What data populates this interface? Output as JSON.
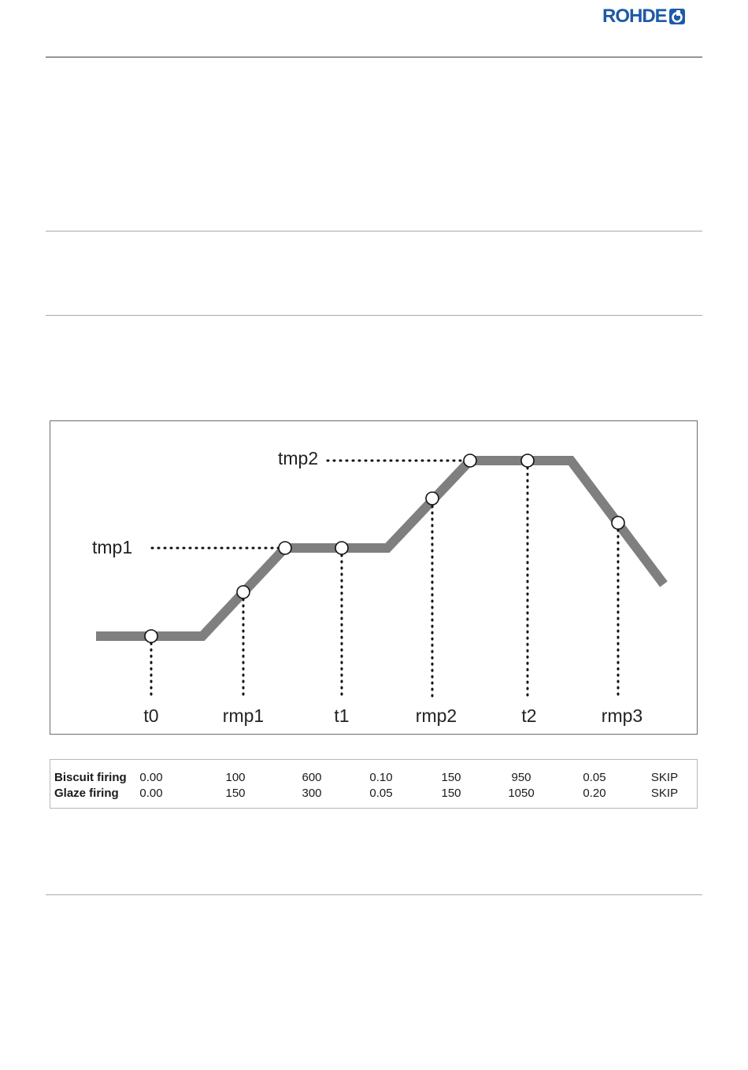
{
  "header": {
    "brand": "ROHDE",
    "brand_color": "#1d5aa8"
  },
  "diagram": {
    "temperature_labels": [
      "tmp1",
      "tmp2"
    ],
    "point_labels": [
      "t0",
      "rmp1",
      "t1",
      "rmp2",
      "t2",
      "rmp3"
    ],
    "profile_color": "#7f7f7f"
  },
  "table": {
    "rows": [
      {
        "label": "Biscuit firing",
        "values": [
          "0.00",
          "100",
          "600",
          "0.10",
          "150",
          "950",
          "0.05",
          "SKIP"
        ]
      },
      {
        "label": "Glaze firing",
        "values": [
          "0.00",
          "150",
          "300",
          "0.05",
          "150",
          "1050",
          "0.20",
          "SKIP"
        ]
      }
    ]
  }
}
